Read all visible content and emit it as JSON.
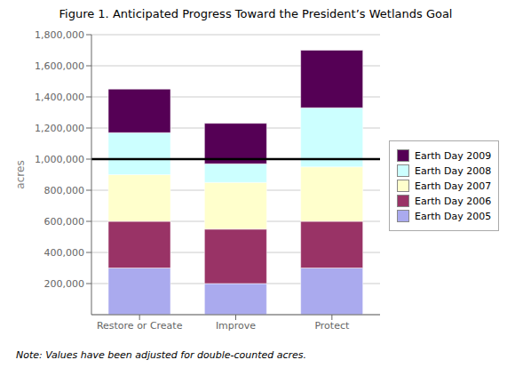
{
  "chart_data": {
    "type": "bar",
    "stacked": true,
    "title": "Figure 1. Anticipated Progress Toward the President’s Wetlands Goal",
    "annotations": [
      "Note: Values have been adjusted for double-counted acres."
    ],
    "categories": [
      "Restore or Create",
      "Improve",
      "Protect"
    ],
    "series": [
      {
        "name": "Earth Day 2005",
        "color": "#aaaaee",
        "values": [
          300000,
          200000,
          300000
        ]
      },
      {
        "name": "Earth Day 2006",
        "color": "#993366",
        "values": [
          300000,
          350000,
          300000
        ]
      },
      {
        "name": "Earth Day 2007",
        "color": "#ffffcc",
        "values": [
          300000,
          300000,
          350000
        ]
      },
      {
        "name": "Earth Day 2008",
        "color": "#ccffff",
        "values": [
          270000,
          120000,
          380000
        ]
      },
      {
        "name": "Earth Day 2009",
        "color": "#550055",
        "values": [
          280000,
          260000,
          370000
        ]
      }
    ],
    "ylabel": "acres",
    "ylim": [
      0,
      1800000
    ],
    "yticks": [
      {
        "value": 200000,
        "label": "200,000"
      },
      {
        "value": 400000,
        "label": "400,000"
      },
      {
        "value": 600000,
        "label": "600,000"
      },
      {
        "value": 800000,
        "label": "800,000"
      },
      {
        "value": 1000000,
        "label": "1,000,000"
      },
      {
        "value": 1200000,
        "label": "1,200,000"
      },
      {
        "value": 1400000,
        "label": "1,400,000"
      },
      {
        "value": 1600000,
        "label": "1,600,000"
      },
      {
        "value": 1800000,
        "label": "1,800,000"
      }
    ],
    "goal_line": 1000000,
    "grid": true,
    "legend": "right"
  }
}
